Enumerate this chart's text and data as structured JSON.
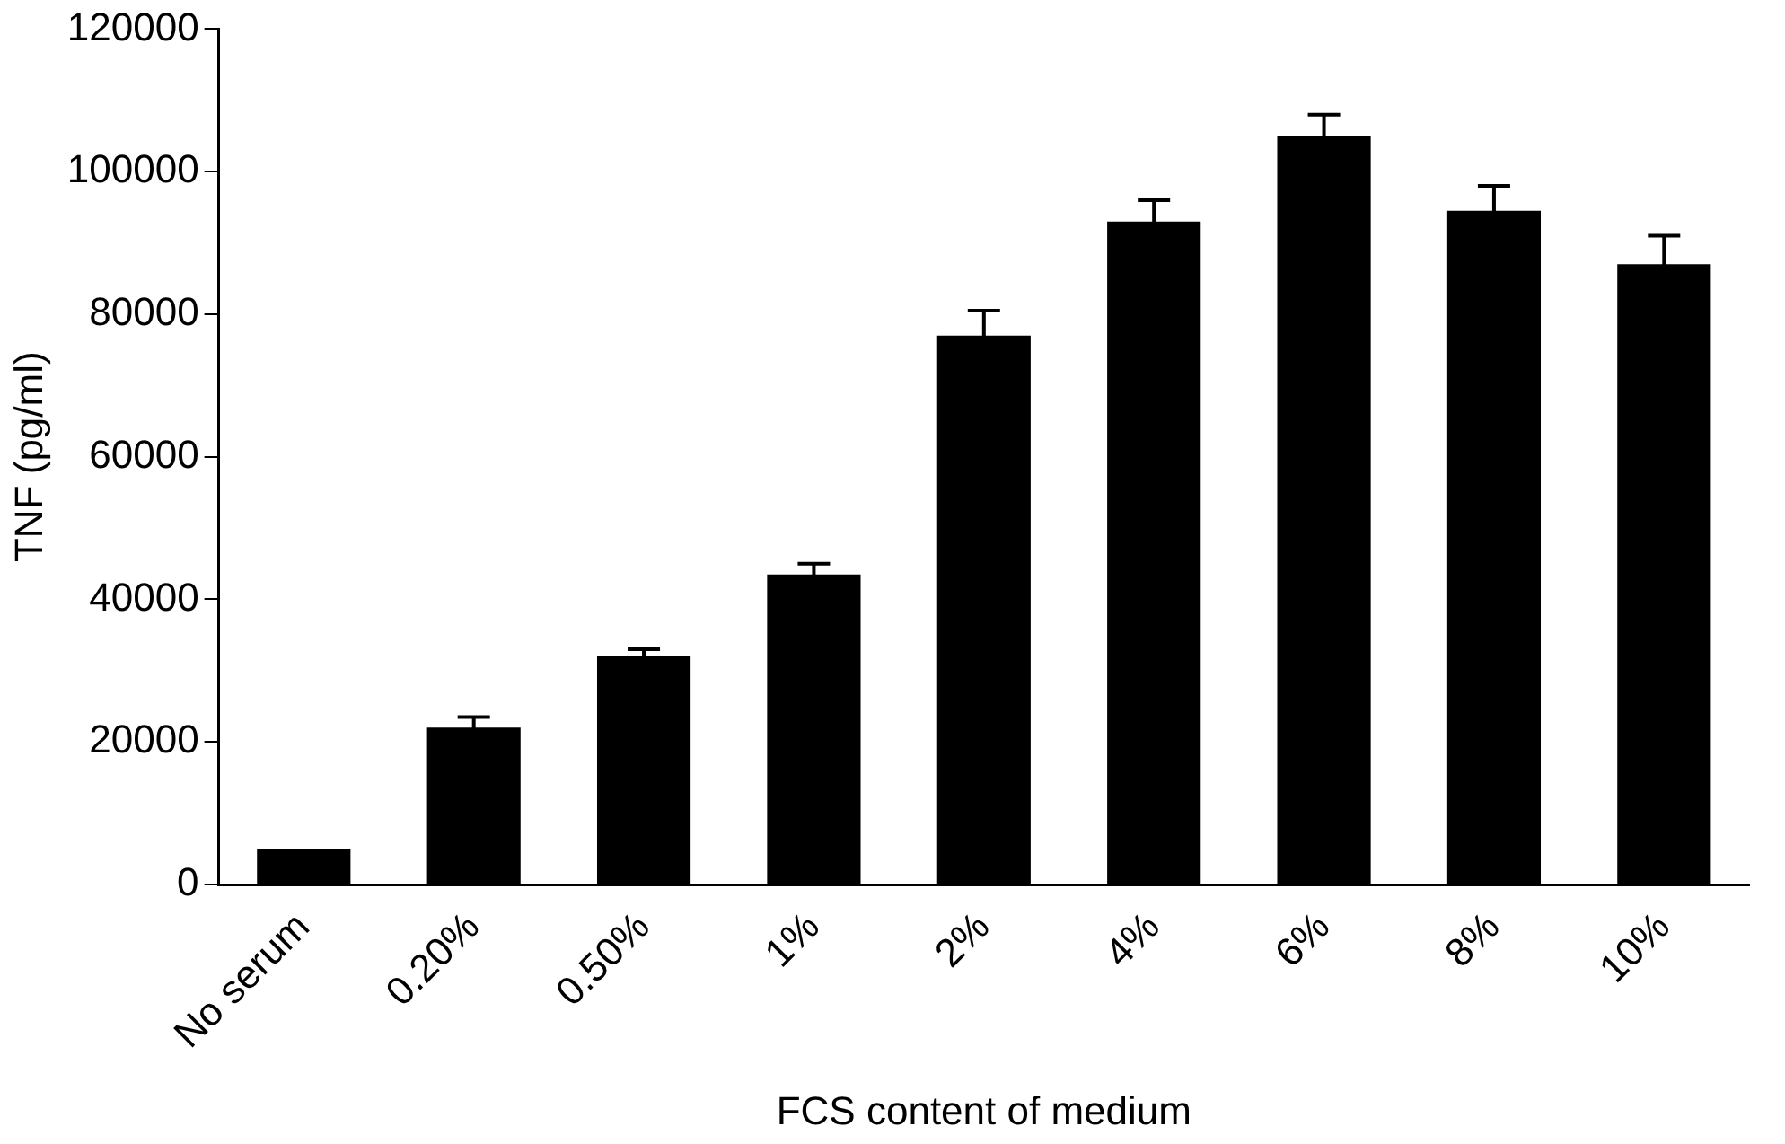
{
  "chart_data": {
    "type": "bar",
    "xlabel": "FCS content of medium",
    "ylabel": "TNF (pg/ml)",
    "categories": [
      "No serum",
      "0.20%",
      "0.50%",
      "1%",
      "2%",
      "4%",
      "6%",
      "8%",
      "10%"
    ],
    "values": [
      5000,
      22000,
      32000,
      43500,
      77000,
      93000,
      105000,
      94500,
      87000
    ],
    "errors": [
      null,
      1500,
      1000,
      1500,
      3500,
      3000,
      3000,
      3500,
      4000
    ],
    "color": "#000000",
    "ylim": [
      0,
      120000
    ],
    "yticks": [
      0,
      20000,
      40000,
      60000,
      80000,
      100000,
      120000
    ],
    "grid": false,
    "legend": false
  }
}
